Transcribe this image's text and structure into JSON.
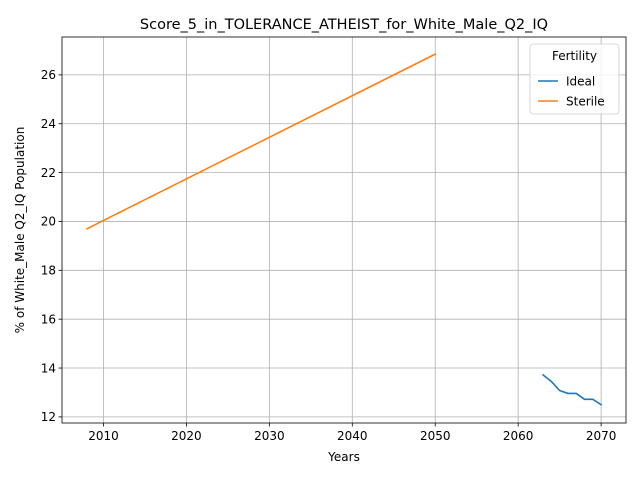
{
  "chart_data": {
    "type": "line",
    "title": "Score_5_in_TOLERANCE_ATHEIST_for_White_Male_Q2_IQ",
    "xlabel": "Years",
    "ylabel": "% of White_Male Q2_IQ Population",
    "xlim": [
      2005,
      2073
    ],
    "ylim": [
      11.75,
      27.55
    ],
    "xticks": [
      2010,
      2020,
      2030,
      2040,
      2050,
      2060,
      2070
    ],
    "yticks": [
      12,
      14,
      16,
      18,
      20,
      22,
      24,
      26
    ],
    "grid": true,
    "legend": {
      "title": "Fertility",
      "placement": "top-right"
    },
    "series": [
      {
        "name": "Ideal",
        "color": "#1f77b4",
        "x": [
          2063,
          2064,
          2065,
          2066,
          2067,
          2068,
          2069,
          2070
        ],
        "y": [
          13.72,
          13.45,
          13.08,
          12.96,
          12.96,
          12.72,
          12.72,
          12.5
        ]
      },
      {
        "name": "Sterile",
        "color": "#ff7f0e",
        "x": [
          2008,
          2050
        ],
        "y": [
          19.7,
          26.85
        ]
      }
    ]
  }
}
